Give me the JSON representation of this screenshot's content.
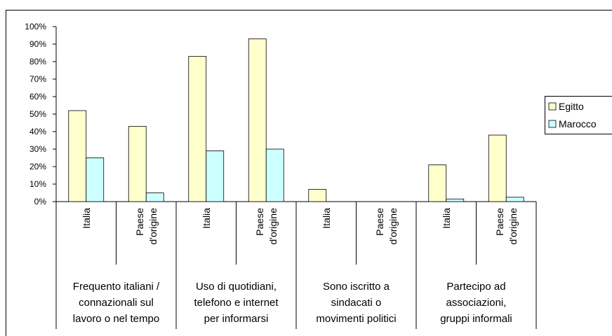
{
  "chart_data": {
    "type": "bar",
    "groups": [
      {
        "label": [
          "Frequento italiani /",
          "connazionali sul",
          "lavoro o nel tempo"
        ],
        "categories": [
          [
            "Italia"
          ],
          [
            "Paese",
            "d'origine"
          ]
        ]
      },
      {
        "label": [
          "Uso di quotidiani,",
          "telefono e internet",
          "per informarsi"
        ],
        "categories": [
          [
            "Italia"
          ],
          [
            "Paese",
            "d'origine"
          ]
        ]
      },
      {
        "label": [
          "Sono iscritto a",
          "sindacati o",
          "movimenti politici"
        ],
        "categories": [
          [
            "Italia"
          ],
          [
            "Paese",
            "d'origine"
          ]
        ]
      },
      {
        "label": [
          "Partecipo ad",
          "associazioni,",
          "gruppi informali"
        ],
        "categories": [
          [
            "Italia"
          ],
          [
            "Paese",
            "d'origine"
          ]
        ]
      }
    ],
    "series": [
      {
        "name": "Egitto",
        "color": "#FFFFCC",
        "values": [
          52,
          43,
          83,
          93,
          7,
          0,
          21,
          38
        ]
      },
      {
        "name": "Marocco",
        "color": "#CCFFFF",
        "values": [
          25,
          5,
          29,
          30,
          0,
          0,
          1.5,
          2.5
        ]
      }
    ],
    "ylim": [
      0,
      100
    ],
    "yticks": [
      {
        "value": 0,
        "label": "0%"
      },
      {
        "value": 10,
        "label": "10%"
      },
      {
        "value": 20,
        "label": "20%"
      },
      {
        "value": 30,
        "label": "30%"
      },
      {
        "value": 40,
        "label": "40%"
      },
      {
        "value": 50,
        "label": "50%"
      },
      {
        "value": 60,
        "label": "60%"
      },
      {
        "value": 70,
        "label": "70%"
      },
      {
        "value": 80,
        "label": "80%"
      },
      {
        "value": 90,
        "label": "90%"
      },
      {
        "value": 100,
        "label": "100%"
      }
    ],
    "legend": "right"
  }
}
